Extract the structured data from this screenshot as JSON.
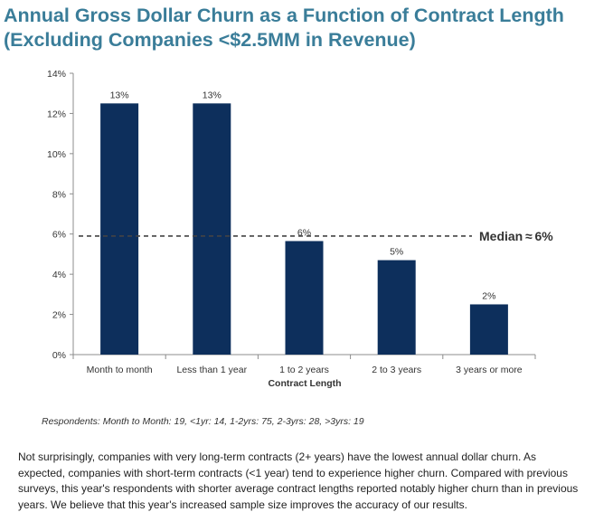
{
  "title_line1": "Annual Gross Dollar Churn as a Function of Contract Length",
  "title_line2": "(Excluding Companies <$2.5MM in Revenue)",
  "respondents_note": "Respondents: Month to Month: 19, <1yr: 14, 1-2yrs: 75, 2-3yrs: 28, >3yrs: 19",
  "paragraph": "Not surprisingly, companies with very long-term contracts (2+ years) have the lowest annual dollar churn. As expected, companies with short-term contracts (<1 year) tend to experience higher churn. Compared with previous surveys, this year's respondents with shorter average contract lengths reported notably higher churn than in previous years. We believe that this year's increased sample size improves the accuracy of our results.",
  "chart_data": {
    "type": "bar",
    "categories": [
      "Month to month",
      "Less than 1 year",
      "1 to 2 years",
      "2 to 3 years",
      "3 years or more"
    ],
    "values": [
      12.5,
      12.5,
      5.65,
      4.7,
      2.5
    ],
    "data_labels": [
      "13%",
      "13%",
      "6%",
      "5%",
      "2%"
    ],
    "xlabel": "Contract Length",
    "ylabel": "",
    "ylim": [
      0,
      14
    ],
    "yticks": [
      0,
      2,
      4,
      6,
      8,
      10,
      12,
      14
    ],
    "ytick_labels": [
      "0%",
      "2%",
      "4%",
      "6%",
      "8%",
      "10%",
      "12%",
      "14%"
    ],
    "reference_line": {
      "value": 5.9,
      "label": "Median ≈ 6%",
      "style": "dashed"
    },
    "bar_color": "#0d2f5c",
    "grid": false
  }
}
